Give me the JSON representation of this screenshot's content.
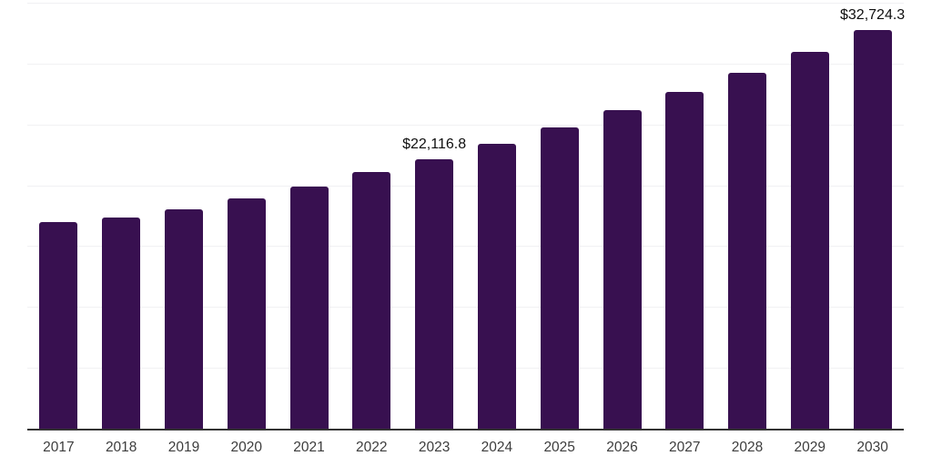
{
  "chart_data": {
    "type": "bar",
    "title": "",
    "xlabel": "",
    "ylabel": "",
    "categories": [
      "2017",
      "2018",
      "2019",
      "2020",
      "2021",
      "2022",
      "2023",
      "2024",
      "2025",
      "2026",
      "2027",
      "2028",
      "2029",
      "2030"
    ],
    "values": [
      16950,
      17370,
      17990,
      18940,
      19890,
      21090,
      22116.8,
      23390,
      24740,
      26160,
      27670,
      29260,
      30940,
      32724.3
    ],
    "data_labels": [
      "",
      "",
      "",
      "",
      "",
      "",
      "$22,116.8",
      "",
      "",
      "",
      "",
      "",
      "",
      "$32,724.3"
    ],
    "ylim": [
      0,
      35000
    ],
    "grid_step": 5000,
    "grid": "on",
    "legend": "none"
  },
  "colors": {
    "bar": "#381050",
    "axis_line": "#333333",
    "gridline": "#f1f1f3",
    "tick_text": "#3d3d3d",
    "data_label_text": "#0f0f0f",
    "background": "#ffffff"
  }
}
